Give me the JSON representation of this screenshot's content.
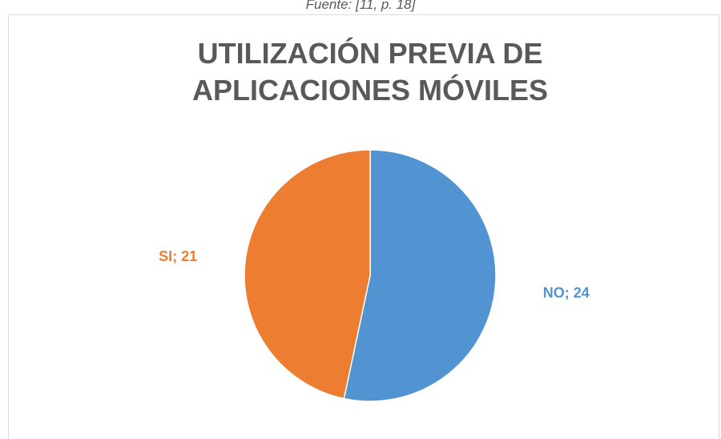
{
  "source": "Fuente: [11, p. 18]",
  "chart_data": {
    "type": "pie",
    "title": "UTILIZACIÓN PREVIA DE APLICACIONES MÓVILES",
    "categories": [
      "NO",
      "SI"
    ],
    "values": [
      24,
      21
    ],
    "value_labels": [
      "NO; 24",
      "SI; 21"
    ],
    "colors": [
      "#5294d2",
      "#ed7d31"
    ]
  }
}
